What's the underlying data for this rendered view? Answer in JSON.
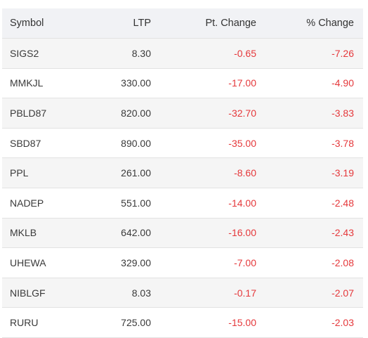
{
  "columns": {
    "symbol": "Symbol",
    "ltp": "LTP",
    "pt_change": "Pt. Change",
    "pct_change": "% Change"
  },
  "rows": [
    {
      "symbol": "SIGS2",
      "ltp": "8.30",
      "pt_change": "-0.65",
      "pct_change": "-7.26"
    },
    {
      "symbol": "MMKJL",
      "ltp": "330.00",
      "pt_change": "-17.00",
      "pct_change": "-4.90"
    },
    {
      "symbol": "PBLD87",
      "ltp": "820.00",
      "pt_change": "-32.70",
      "pct_change": "-3.83"
    },
    {
      "symbol": "SBD87",
      "ltp": "890.00",
      "pt_change": "-35.00",
      "pct_change": "-3.78"
    },
    {
      "symbol": "PPL",
      "ltp": "261.00",
      "pt_change": "-8.60",
      "pct_change": "-3.19"
    },
    {
      "symbol": "NADEP",
      "ltp": "551.00",
      "pt_change": "-14.00",
      "pct_change": "-2.48"
    },
    {
      "symbol": "MKLB",
      "ltp": "642.00",
      "pt_change": "-16.00",
      "pct_change": "-2.43"
    },
    {
      "symbol": "UHEWA",
      "ltp": "329.00",
      "pt_change": "-7.00",
      "pct_change": "-2.08"
    },
    {
      "symbol": "NIBLGF",
      "ltp": "8.03",
      "pt_change": "-0.17",
      "pct_change": "-2.07"
    },
    {
      "symbol": "RURU",
      "ltp": "725.00",
      "pt_change": "-15.00",
      "pct_change": "-2.03"
    }
  ],
  "colors": {
    "negative": "#e5383b",
    "header_bg": "#f1f2f5",
    "stripe_bg": "#f5f5f5"
  }
}
